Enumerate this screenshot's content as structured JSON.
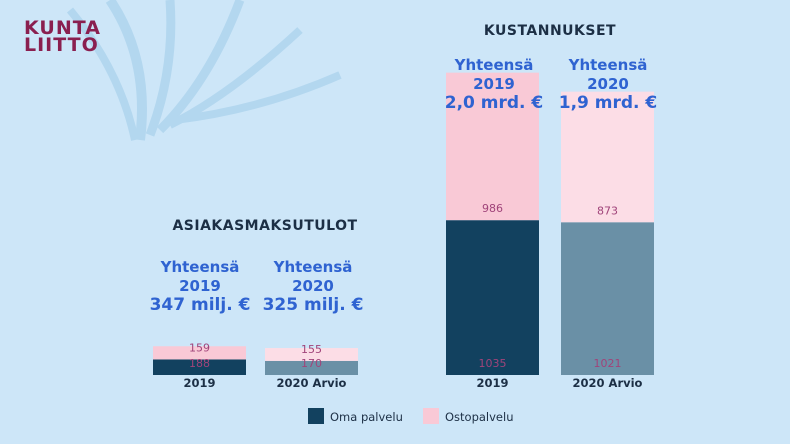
{
  "logo": {
    "line1": "KUNTA",
    "line2": "LIITTO"
  },
  "colors": {
    "background": "#cde6f8",
    "oma": "#12415f",
    "osto": "#f9c9d6",
    "oma_estimate": "#6a90a6",
    "osto_estimate": "#fcdde6",
    "accent": "#2f63d1"
  },
  "legend": {
    "oma": "Oma palvelu",
    "osto": "Ostopalvelu"
  },
  "chart_data": [
    {
      "type": "bar",
      "stacked": true,
      "title": "ASIAKASMAKSUTULOT",
      "categories": [
        "2019",
        "2020 Arvio"
      ],
      "series": [
        {
          "name": "Oma palvelu",
          "values": [
            188,
            170
          ]
        },
        {
          "name": "Ostopalvelu",
          "values": [
            159,
            155
          ]
        }
      ],
      "totals": [
        {
          "label": "Yhteensä",
          "year": "2019",
          "value": "347 milj. €"
        },
        {
          "label": "Yhteensä",
          "year": "2020",
          "value": "325 milj. €"
        }
      ]
    },
    {
      "type": "bar",
      "stacked": true,
      "title": "KUSTANNUKSET",
      "categories": [
        "2019",
        "2020 Arvio"
      ],
      "series": [
        {
          "name": "Oma palvelu",
          "values": [
            1035,
            1021
          ]
        },
        {
          "name": "Ostopalvelu",
          "values": [
            986,
            873
          ]
        }
      ],
      "totals": [
        {
          "label": "Yhteensä",
          "year": "2019",
          "value": "2,0 mrd. €"
        },
        {
          "label": "Yhteensä",
          "year": "2020",
          "value": "1,9 mrd. €"
        }
      ]
    }
  ]
}
